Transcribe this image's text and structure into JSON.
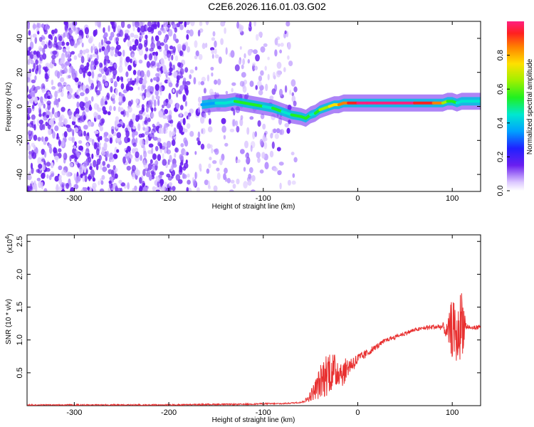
{
  "title": "C2E6.2026.116.01.03.G02",
  "colors": {
    "series": "#e83030",
    "spectrogram_noise": "#6a1ff0",
    "spectrogram_bg": "#ffffff"
  },
  "charts": {
    "spectrogram": {
      "xlabel": "Height of straight line (km)",
      "ylabel": "Frequency (Hz)",
      "xticks": [
        "-300",
        "-200",
        "-100",
        "0",
        "100"
      ],
      "yticks": [
        "-40",
        "-20",
        "0",
        "20",
        "40"
      ],
      "colorbar_label": "Normalized spectral amplitude",
      "colorbar_ticks": [
        "0.0",
        "0.2",
        "0.4",
        "0.6",
        "0.8"
      ]
    },
    "snr": {
      "xlabel": "Height of straight line (km)",
      "ylabel": "SNR (10 * v/v)",
      "multiplier": "(x10",
      "multiplier_exp": "4",
      "multiplier_close": ")",
      "xticks": [
        "-300",
        "-200",
        "-100",
        "0",
        "100"
      ],
      "yticks": [
        "0.5",
        "1.0",
        "1.5",
        "2.0",
        "2.5"
      ]
    }
  },
  "chart_data": [
    {
      "type": "heatmap",
      "title": "C2E6.2026.116.01.03.G02",
      "xlabel": "Height of straight line (km)",
      "ylabel": "Frequency (Hz)",
      "xlim": [
        -350,
        130
      ],
      "ylim": [
        -50,
        50
      ],
      "colorbar": {
        "label": "Normalized spectral amplitude",
        "range": [
          0,
          1
        ]
      },
      "ridge": {
        "x": [
          -165,
          -150,
          -140,
          -130,
          -120,
          -110,
          -100,
          -90,
          -80,
          -70,
          -60,
          -55,
          -50,
          -45,
          -40,
          -35,
          -30,
          -25,
          -20,
          -15,
          -10,
          0,
          10,
          20,
          40,
          60,
          80,
          90,
          95,
          100,
          105,
          110,
          120,
          130
        ],
        "y": [
          1,
          2,
          2,
          3,
          2,
          1,
          0,
          -1,
          -3,
          -5,
          -6,
          -7,
          -5,
          -4,
          -2,
          -1,
          0,
          1,
          1,
          2,
          2,
          2,
          2,
          2,
          2,
          2,
          2,
          2,
          3,
          3,
          2,
          3,
          3,
          3
        ],
        "amplitude": [
          0.35,
          0.45,
          0.5,
          0.55,
          0.55,
          0.55,
          0.5,
          0.55,
          0.5,
          0.55,
          0.6,
          0.55,
          0.5,
          0.6,
          0.65,
          0.7,
          0.75,
          0.8,
          0.85,
          0.9,
          0.95,
          1.0,
          1.0,
          1.0,
          1.0,
          0.95,
          0.85,
          0.7,
          0.6,
          0.55,
          0.5,
          0.5,
          0.5,
          0.5
        ]
      },
      "noise_region": [
        -350,
        -75
      ]
    },
    {
      "type": "line",
      "xlabel": "Height of straight line (km)",
      "ylabel": "SNR (10 * v/v)",
      "xlim": [
        -350,
        130
      ],
      "ylim": [
        0,
        2.6
      ],
      "y_multiplier": 10000,
      "series": [
        {
          "x": [
            -350,
            -300,
            -250,
            -200,
            -150,
            -120,
            -100,
            -80,
            -70,
            -60,
            -55,
            -50,
            -45,
            -40,
            -35,
            -30,
            -25,
            -20,
            -15,
            -10,
            -5,
            0,
            5,
            10,
            20,
            30,
            40,
            50,
            60,
            70,
            80,
            90,
            95,
            100,
            105,
            110,
            115,
            120,
            130
          ],
          "y": [
            0.01,
            0.01,
            0.01,
            0.01,
            0.02,
            0.02,
            0.03,
            0.03,
            0.04,
            0.05,
            0.08,
            0.15,
            0.25,
            0.35,
            0.45,
            0.55,
            0.5,
            0.55,
            0.5,
            0.6,
            0.65,
            0.7,
            0.75,
            0.8,
            0.9,
            1.0,
            1.05,
            1.1,
            1.15,
            1.18,
            1.2,
            1.2,
            1.1,
            1.2,
            1.0,
            1.3,
            1.2,
            1.18,
            1.2
          ],
          "noise_amplitude": [
            0,
            0,
            0,
            0,
            0,
            0,
            0,
            0,
            0,
            0,
            0.03,
            0.08,
            0.15,
            0.25,
            0.35,
            0.35,
            0.3,
            0.25,
            0.2,
            0.15,
            0.12,
            0.1,
            0.08,
            0.06,
            0.04,
            0.03,
            0.03,
            0.03,
            0.03,
            0.03,
            0.04,
            0.06,
            0.15,
            0.5,
            0.35,
            0.6,
            0.05,
            0.03,
            0.03
          ]
        }
      ]
    }
  ]
}
